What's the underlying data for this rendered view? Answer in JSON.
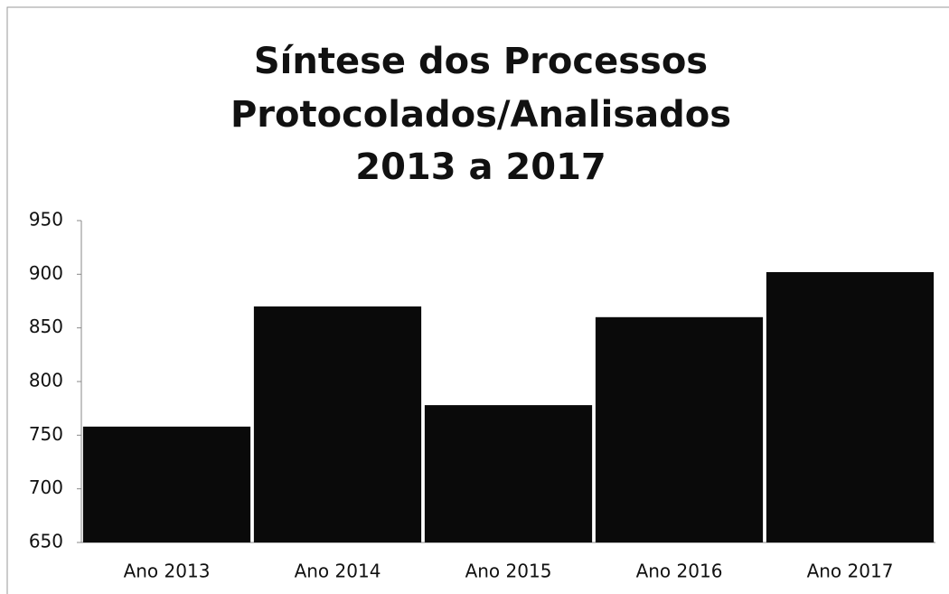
{
  "chart_data": {
    "type": "bar",
    "title": [
      "Síntese dos Processos",
      "Protocolados/Analisados",
      "2013 a 2017"
    ],
    "categories": [
      "Ano 2013",
      "Ano 2014",
      "Ano 2015",
      "Ano 2016",
      "Ano 2017"
    ],
    "values": [
      758,
      870,
      778,
      860,
      902
    ],
    "color": "#0a0a0a",
    "ylim": [
      650,
      950
    ],
    "yticks": [
      650,
      700,
      750,
      800,
      850,
      900,
      950
    ],
    "grid": false
  }
}
